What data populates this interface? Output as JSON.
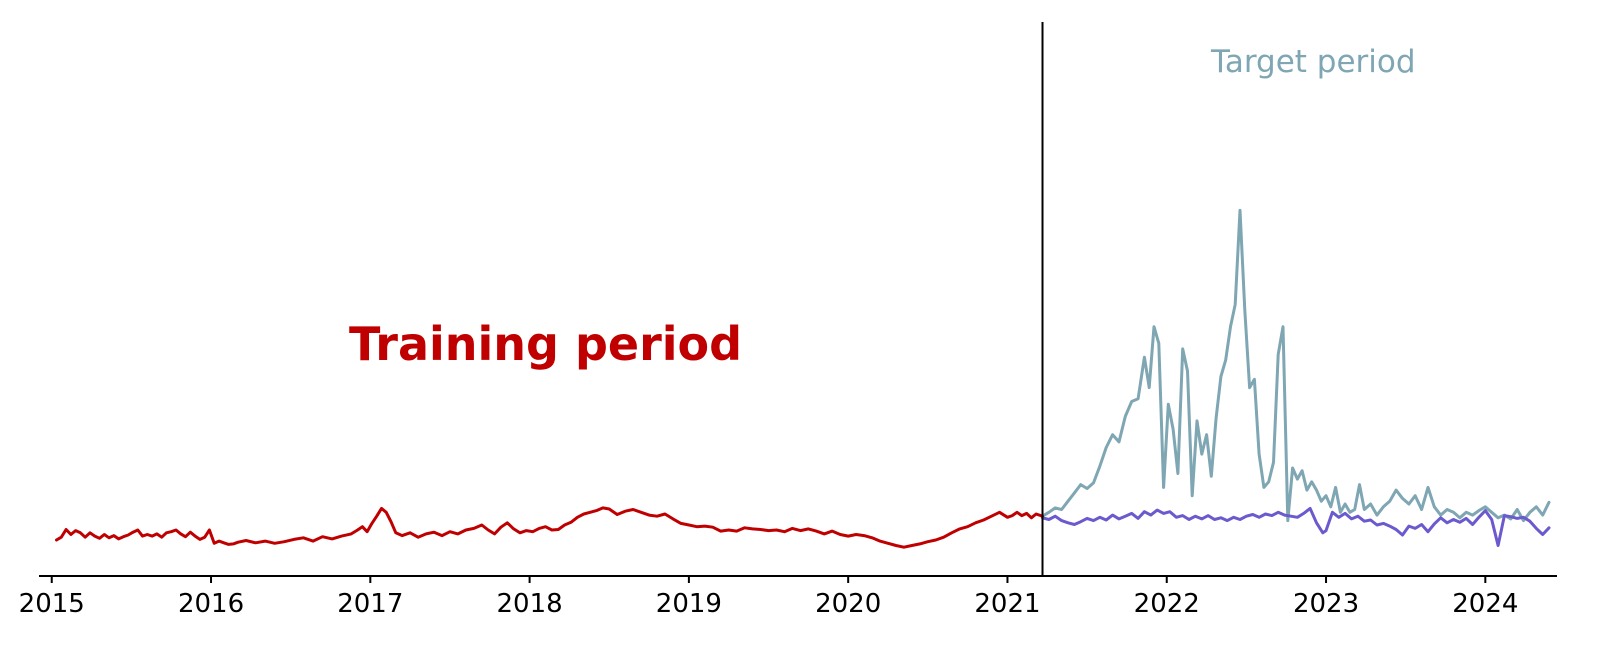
{
  "colors": {
    "training": "#c00000",
    "target_actual": "#7fa6b3",
    "target_predicted": "#6a5acd",
    "axis": "#000000",
    "divider": "#000000"
  },
  "chart_data": {
    "type": "line",
    "title": "",
    "xlabel": "",
    "ylabel": "",
    "x_axis": "year",
    "xlim": [
      2014.92,
      2024.45
    ],
    "ylim": [
      0,
      100
    ],
    "y_axis_visible": false,
    "grid": false,
    "legend": "none",
    "x_ticks": [
      2015,
      2016,
      2017,
      2018,
      2019,
      2020,
      2021,
      2022,
      2023,
      2024
    ],
    "divider_x": 2021.22,
    "annotations": [
      {
        "id": "training",
        "text": "Training period",
        "x": 2018.1,
        "y": 39
      },
      {
        "id": "target",
        "text": "Target period",
        "x": 2022.92,
        "y": 91
      }
    ],
    "series": [
      {
        "id": "training",
        "color_key": "training",
        "x": [
          2015.03,
          2015.06,
          2015.09,
          2015.12,
          2015.15,
          2015.18,
          2015.21,
          2015.24,
          2015.27,
          2015.3,
          2015.33,
          2015.36,
          2015.39,
          2015.42,
          2015.45,
          2015.48,
          2015.51,
          2015.54,
          2015.57,
          2015.6,
          2015.63,
          2015.66,
          2015.69,
          2015.72,
          2015.75,
          2015.78,
          2015.81,
          2015.84,
          2015.87,
          2015.9,
          2015.93,
          2015.96,
          2015.99,
          2016.02,
          2016.05,
          2016.08,
          2016.11,
          2016.14,
          2016.17,
          2016.22,
          2016.28,
          2016.34,
          2016.4,
          2016.46,
          2016.52,
          2016.58,
          2016.64,
          2016.7,
          2016.76,
          2016.82,
          2016.88,
          2016.92,
          2016.95,
          2016.98,
          2017.01,
          2017.04,
          2017.07,
          2017.1,
          2017.13,
          2017.16,
          2017.2,
          2017.25,
          2017.3,
          2017.35,
          2017.4,
          2017.45,
          2017.5,
          2017.55,
          2017.6,
          2017.65,
          2017.7,
          2017.74,
          2017.78,
          2017.82,
          2017.86,
          2017.9,
          2017.94,
          2017.98,
          2018.02,
          2018.06,
          2018.1,
          2018.14,
          2018.18,
          2018.22,
          2018.26,
          2018.3,
          2018.34,
          2018.38,
          2018.42,
          2018.46,
          2018.5,
          2018.55,
          2018.6,
          2018.65,
          2018.7,
          2018.75,
          2018.8,
          2018.85,
          2018.9,
          2018.95,
          2019.0,
          2019.05,
          2019.1,
          2019.15,
          2019.2,
          2019.25,
          2019.3,
          2019.35,
          2019.4,
          2019.45,
          2019.5,
          2019.55,
          2019.6,
          2019.65,
          2019.7,
          2019.75,
          2019.8,
          2019.85,
          2019.9,
          2019.95,
          2020.0,
          2020.05,
          2020.1,
          2020.15,
          2020.2,
          2020.25,
          2020.3,
          2020.35,
          2020.4,
          2020.45,
          2020.5,
          2020.55,
          2020.6,
          2020.65,
          2020.7,
          2020.75,
          2020.8,
          2020.85,
          2020.9,
          2020.95,
          2021.0,
          2021.03,
          2021.06,
          2021.09,
          2021.12,
          2021.15,
          2021.18,
          2021.22
        ],
        "y": [
          6.5,
          7.0,
          8.4,
          7.5,
          8.2,
          7.8,
          7.0,
          7.8,
          7.2,
          6.8,
          7.5,
          6.9,
          7.3,
          6.7,
          7.1,
          7.4,
          7.9,
          8.3,
          7.2,
          7.5,
          7.2,
          7.6,
          7.0,
          7.8,
          8.0,
          8.3,
          7.6,
          7.1,
          7.9,
          7.2,
          6.6,
          7.0,
          8.3,
          5.9,
          6.3,
          6.0,
          5.7,
          5.8,
          6.1,
          6.4,
          6.0,
          6.3,
          5.9,
          6.2,
          6.6,
          6.9,
          6.3,
          7.1,
          6.7,
          7.2,
          7.6,
          8.3,
          8.9,
          8.0,
          9.5,
          10.8,
          12.2,
          11.5,
          9.8,
          7.8,
          7.3,
          7.8,
          7.0,
          7.6,
          7.9,
          7.3,
          8.0,
          7.6,
          8.3,
          8.6,
          9.2,
          8.3,
          7.6,
          8.8,
          9.6,
          8.5,
          7.8,
          8.2,
          8.0,
          8.6,
          8.9,
          8.3,
          8.4,
          9.2,
          9.7,
          10.6,
          11.2,
          11.5,
          11.8,
          12.3,
          12.1,
          11.1,
          11.7,
          12.0,
          11.5,
          11.0,
          10.8,
          11.2,
          10.3,
          9.5,
          9.2,
          8.9,
          9.0,
          8.8,
          8.1,
          8.3,
          8.1,
          8.7,
          8.5,
          8.4,
          8.2,
          8.3,
          8.0,
          8.6,
          8.2,
          8.5,
          8.1,
          7.6,
          8.1,
          7.5,
          7.2,
          7.5,
          7.3,
          6.9,
          6.3,
          5.9,
          5.5,
          5.2,
          5.5,
          5.8,
          6.2,
          6.5,
          7.0,
          7.8,
          8.5,
          8.9,
          9.6,
          10.1,
          10.8,
          11.5,
          10.6,
          10.9,
          11.5,
          10.9,
          11.3,
          10.5,
          11.2,
          10.8
        ]
      },
      {
        "id": "target_actual",
        "color_key": "target_actual",
        "x": [
          2021.22,
          2021.26,
          2021.3,
          2021.34,
          2021.38,
          2021.42,
          2021.46,
          2021.5,
          2021.54,
          2021.58,
          2021.62,
          2021.66,
          2021.7,
          2021.74,
          2021.78,
          2021.82,
          2021.86,
          2021.89,
          2021.92,
          2021.95,
          2021.98,
          2022.01,
          2022.04,
          2022.07,
          2022.1,
          2022.13,
          2022.16,
          2022.19,
          2022.22,
          2022.25,
          2022.28,
          2022.31,
          2022.34,
          2022.37,
          2022.4,
          2022.43,
          2022.46,
          2022.49,
          2022.52,
          2022.55,
          2022.58,
          2022.61,
          2022.64,
          2022.67,
          2022.7,
          2022.73,
          2022.76,
          2022.79,
          2022.82,
          2022.85,
          2022.88,
          2022.91,
          2022.94,
          2022.97,
          2023.0,
          2023.03,
          2023.06,
          2023.09,
          2023.12,
          2023.15,
          2023.18,
          2023.21,
          2023.24,
          2023.28,
          2023.32,
          2023.36,
          2023.4,
          2023.44,
          2023.48,
          2023.52,
          2023.56,
          2023.6,
          2023.64,
          2023.68,
          2023.72,
          2023.76,
          2023.8,
          2023.84,
          2023.88,
          2023.92,
          2023.96,
          2024.0,
          2024.04,
          2024.08,
          2024.12,
          2024.16,
          2024.2,
          2024.24,
          2024.28,
          2024.32,
          2024.36,
          2024.4
        ],
        "y": [
          10.8,
          11.5,
          12.3,
          12.0,
          13.5,
          15.0,
          16.5,
          15.8,
          16.8,
          19.8,
          23.2,
          25.5,
          24.2,
          28.8,
          31.5,
          32.0,
          39.5,
          34.0,
          45.0,
          42.0,
          16.0,
          31.0,
          26.5,
          18.5,
          41.0,
          37.0,
          14.5,
          28.0,
          22.0,
          25.5,
          18.0,
          28.5,
          36.0,
          39.0,
          45.0,
          49.0,
          66.0,
          48.0,
          34.0,
          35.5,
          22.0,
          16.0,
          17.0,
          20.5,
          40.0,
          45.0,
          10.0,
          19.5,
          17.5,
          19.0,
          15.5,
          17.0,
          15.5,
          13.5,
          14.5,
          12.5,
          16.0,
          11.5,
          13.0,
          11.5,
          12.0,
          16.5,
          12.0,
          13.0,
          11.0,
          12.5,
          13.5,
          15.5,
          14.0,
          13.0,
          14.5,
          12.0,
          16.0,
          12.5,
          11.0,
          12.0,
          11.5,
          10.5,
          11.5,
          11.0,
          11.8,
          12.5,
          11.5,
          10.5,
          11.0,
          10.3,
          12.0,
          10.0,
          11.5,
          12.5,
          11.0,
          13.3
        ]
      },
      {
        "id": "target_predicted",
        "color_key": "target_predicted",
        "x": [
          2021.22,
          2021.26,
          2021.3,
          2021.34,
          2021.38,
          2021.42,
          2021.46,
          2021.5,
          2021.54,
          2021.58,
          2021.62,
          2021.66,
          2021.7,
          2021.74,
          2021.78,
          2021.82,
          2021.86,
          2021.9,
          2021.94,
          2021.98,
          2022.02,
          2022.06,
          2022.1,
          2022.14,
          2022.18,
          2022.22,
          2022.26,
          2022.3,
          2022.34,
          2022.38,
          2022.42,
          2022.46,
          2022.5,
          2022.54,
          2022.58,
          2022.62,
          2022.66,
          2022.7,
          2022.74,
          2022.78,
          2022.82,
          2022.86,
          2022.9,
          2022.94,
          2022.98,
          2023.0,
          2023.04,
          2023.08,
          2023.12,
          2023.16,
          2023.2,
          2023.24,
          2023.28,
          2023.32,
          2023.36,
          2023.4,
          2023.44,
          2023.48,
          2023.52,
          2023.56,
          2023.6,
          2023.64,
          2023.68,
          2023.72,
          2023.76,
          2023.8,
          2023.84,
          2023.88,
          2023.92,
          2023.96,
          2024.0,
          2024.04,
          2024.08,
          2024.12,
          2024.16,
          2024.2,
          2024.24,
          2024.28,
          2024.32,
          2024.36,
          2024.4
        ],
        "y": [
          10.5,
          10.2,
          10.8,
          10.0,
          9.6,
          9.3,
          9.8,
          10.4,
          10.0,
          10.6,
          10.1,
          11.0,
          10.3,
          10.8,
          11.3,
          10.4,
          11.6,
          11.0,
          11.9,
          11.3,
          11.6,
          10.6,
          10.9,
          10.2,
          10.8,
          10.3,
          10.9,
          10.2,
          10.5,
          10.0,
          10.6,
          10.2,
          10.8,
          11.1,
          10.6,
          11.2,
          10.9,
          11.5,
          11.0,
          10.8,
          10.6,
          11.3,
          12.2,
          9.6,
          7.8,
          8.2,
          11.5,
          10.6,
          11.3,
          10.3,
          10.8,
          9.9,
          10.1,
          9.2,
          9.5,
          9.0,
          8.4,
          7.4,
          9.0,
          8.6,
          9.3,
          8.0,
          9.4,
          10.5,
          9.6,
          10.2,
          9.7,
          10.4,
          9.3,
          10.6,
          11.8,
          10.2,
          5.5,
          10.9,
          10.7,
          10.4,
          10.6,
          9.9,
          8.6,
          7.5,
          8.7
        ]
      }
    ]
  }
}
